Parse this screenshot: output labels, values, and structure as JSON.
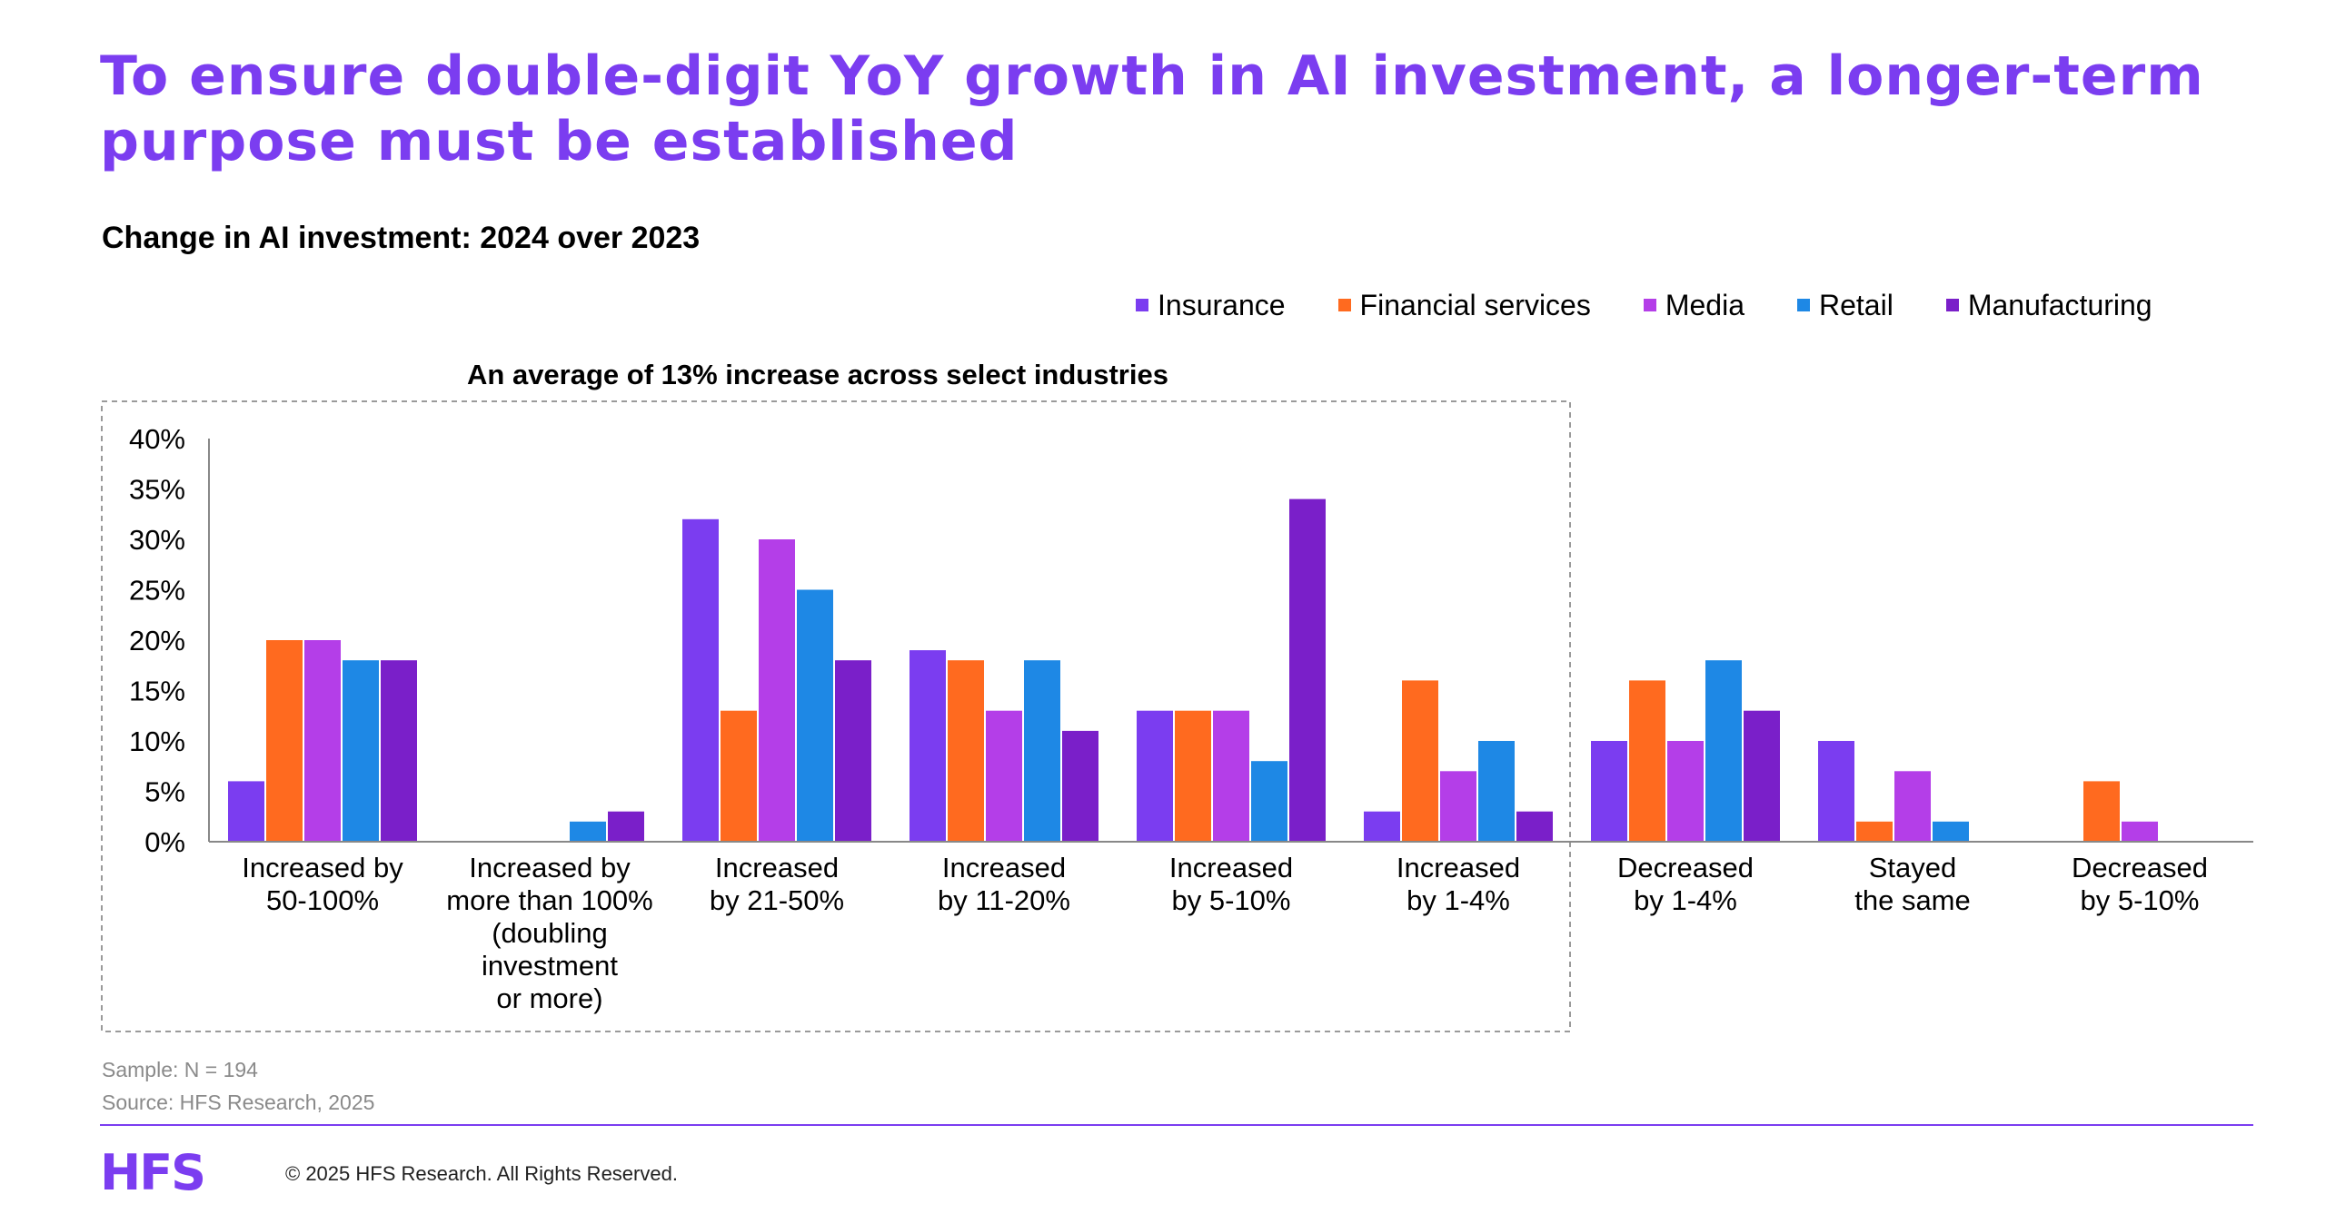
{
  "title": "To ensure double-digit YoY growth in AI investment, a longer-term purpose must be established",
  "subtitle": "Change in AI investment: 2024 over 2023",
  "colors": {
    "accent": "#7b3df0",
    "series": [
      "#7b3df0",
      "#ff6a1f",
      "#b43ee8",
      "#1e88e5",
      "#7a1fc9"
    ]
  },
  "chart_data": {
    "type": "bar",
    "annotation": "An average of 13% increase across select industries",
    "categories": [
      "Increased by 50-100%",
      "Increased by more than 100% (doubling investment or more)",
      "Increased by 21-50%",
      "Increased by 11-20%",
      "Increased by 5-10%",
      "Increased by 1-4%",
      "Decreased by 1-4%",
      "Stayed the same",
      "Decreased by 5-10%"
    ],
    "category_label_lines": [
      [
        "Increased by",
        "50-100%"
      ],
      [
        "Increased by",
        "more than 100%",
        "(doubling",
        "investment",
        "or more)"
      ],
      [
        "Increased",
        "by 21-50%"
      ],
      [
        "Increased",
        "by 11-20%"
      ],
      [
        "Increased",
        "by 5-10%"
      ],
      [
        "Increased",
        "by 1-4%"
      ],
      [
        "Decreased",
        "by 1-4%"
      ],
      [
        "Stayed",
        "the same"
      ],
      [
        "Decreased",
        "by 5-10%"
      ]
    ],
    "series": [
      {
        "name": "Insurance",
        "values": [
          6,
          0,
          32,
          19,
          13,
          3,
          10,
          10,
          0
        ]
      },
      {
        "name": "Financial services",
        "values": [
          20,
          0,
          13,
          18,
          13,
          16,
          16,
          2,
          6
        ]
      },
      {
        "name": "Media",
        "values": [
          20,
          0,
          30,
          13,
          13,
          7,
          10,
          7,
          2
        ]
      },
      {
        "name": "Retail",
        "values": [
          18,
          2,
          25,
          18,
          8,
          10,
          18,
          2,
          0
        ]
      },
      {
        "name": "Manufacturing",
        "values": [
          18,
          3,
          18,
          11,
          34,
          3,
          13,
          0,
          0
        ]
      }
    ],
    "yticks": [
      "0%",
      "5%",
      "10%",
      "15%",
      "20%",
      "25%",
      "30%",
      "35%",
      "40%"
    ],
    "ylim": [
      0,
      40
    ],
    "legend_position": "top-right",
    "grid": false
  },
  "notes": {
    "sample": "Sample: N = 194",
    "source": "Source: HFS Research, 2025"
  },
  "footer": {
    "logo": "HFS",
    "copyright": "© 2025 HFS Research. All Rights Reserved."
  }
}
